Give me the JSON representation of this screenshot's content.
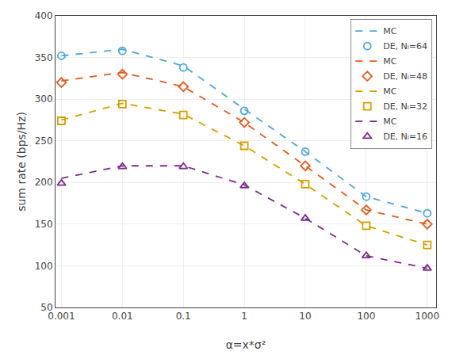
{
  "chart_data": {
    "type": "line",
    "x": [
      0.001,
      0.01,
      0.1,
      1,
      10,
      100,
      1000
    ],
    "series": [
      {
        "name": "MC",
        "color": "#4EA6DC",
        "line_style": "dashed",
        "values": [
          352,
          360,
          340,
          288,
          237,
          183,
          163
        ]
      },
      {
        "name": "DE, Nₗ=64",
        "color": "#4EA6DC",
        "type": "scatter",
        "marker": "circle",
        "values": [
          352,
          358,
          338,
          286,
          237,
          183,
          163
        ]
      },
      {
        "name": "MC",
        "color": "#E05C20",
        "line_style": "dashed",
        "values": [
          322,
          332,
          315,
          272,
          220,
          167,
          150
        ]
      },
      {
        "name": "DE, Nₗ=48",
        "color": "#E05C20",
        "type": "scatter",
        "marker": "diamond",
        "values": [
          320,
          330,
          315,
          272,
          220,
          167,
          150
        ]
      },
      {
        "name": "MC",
        "color": "#D4A000",
        "line_style": "dashed",
        "values": [
          275,
          295,
          282,
          244,
          198,
          148,
          125
        ]
      },
      {
        "name": "DE, Nₗ=32",
        "color": "#D4A000",
        "type": "scatter",
        "marker": "square",
        "values": [
          274,
          294,
          281,
          244,
          198,
          148,
          125
        ]
      },
      {
        "name": "MC",
        "color": "#7B2D8B",
        "line_style": "dashed",
        "values": [
          205,
          220,
          220,
          197,
          157,
          112,
          97
        ]
      },
      {
        "name": "DE, Nₗ=16",
        "color": "#7B2D8B",
        "type": "scatter",
        "marker": "triangle-up",
        "values": [
          199,
          219,
          219,
          196,
          157,
          112,
          97
        ]
      }
    ],
    "xlabel": "α=x*σ²",
    "ylabel": "sum rate (bps/Hz)",
    "log": "x",
    "xlim": [
      0.0008,
      1400
    ],
    "xticks": [
      0.001,
      0.01,
      0.1,
      1,
      10,
      100,
      1000
    ],
    "ylim": [
      50,
      400
    ],
    "yticks": [
      50,
      100,
      150,
      200,
      250,
      300,
      350,
      400
    ],
    "grid": true,
    "legend": "upper right"
  }
}
